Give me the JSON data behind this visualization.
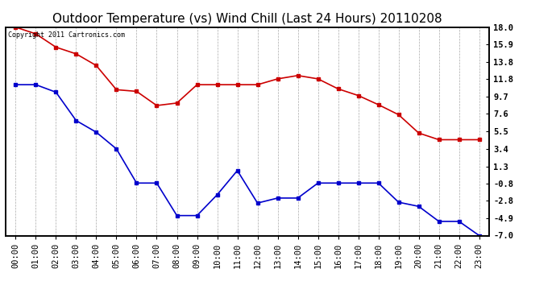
{
  "title": "Outdoor Temperature (vs) Wind Chill (Last 24 Hours) 20110208",
  "copyright_text": "Copyright 2011 Cartronics.com",
  "hours": [
    "00:00",
    "01:00",
    "02:00",
    "03:00",
    "04:00",
    "05:00",
    "06:00",
    "07:00",
    "08:00",
    "09:00",
    "10:00",
    "11:00",
    "12:00",
    "13:00",
    "14:00",
    "15:00",
    "16:00",
    "17:00",
    "18:00",
    "19:00",
    "20:00",
    "21:00",
    "22:00",
    "23:00"
  ],
  "temp": [
    18.0,
    17.2,
    15.6,
    14.8,
    13.4,
    10.5,
    10.3,
    8.6,
    8.9,
    11.1,
    11.1,
    11.1,
    11.1,
    11.8,
    12.2,
    11.8,
    10.6,
    9.8,
    8.7,
    7.5,
    5.3,
    4.5,
    4.5,
    4.5
  ],
  "wind_chill": [
    11.1,
    11.1,
    10.2,
    6.8,
    5.4,
    3.4,
    -0.7,
    -0.7,
    -4.6,
    -4.6,
    -2.1,
    0.8,
    -3.1,
    -2.5,
    -2.5,
    -0.7,
    -0.7,
    -0.7,
    -0.7,
    -3.0,
    -3.5,
    -5.3,
    -5.3,
    -7.0
  ],
  "temp_color": "#cc0000",
  "wind_chill_color": "#0000cc",
  "marker": "s",
  "marker_size": 3,
  "ylim": [
    -7.0,
    18.0
  ],
  "yticks_right": [
    18.0,
    15.9,
    13.8,
    11.8,
    9.7,
    7.6,
    5.5,
    3.4,
    1.3,
    -0.8,
    -2.8,
    -4.9,
    -7.0
  ],
  "background_color": "#ffffff",
  "grid_color": "#aaaaaa",
  "title_fontsize": 11,
  "tick_fontsize": 7.5,
  "copyright_fontsize": 6
}
